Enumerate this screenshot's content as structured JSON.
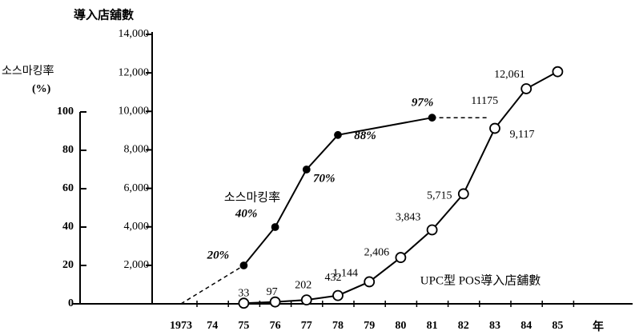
{
  "chart_data": {
    "type": "line",
    "y_title": "소스마킹率",
    "y_unit": "(%)",
    "y2_title": "導入店舖數",
    "x_title": "年",
    "categories": [
      "1973",
      "74",
      "75",
      "76",
      "77",
      "78",
      "79",
      "80",
      "81",
      "82",
      "83",
      "84",
      "85"
    ],
    "ylim": [
      0,
      100
    ],
    "yticks": [
      0,
      20,
      40,
      60,
      80,
      100
    ],
    "y2lim": [
      0,
      14000
    ],
    "y2ticks": [
      {
        "value": 2000,
        "label": "2,000"
      },
      {
        "value": 4000,
        "label": "4,000"
      },
      {
        "value": 6000,
        "label": "6,000"
      },
      {
        "value": 8000,
        "label": "8,000"
      },
      {
        "value": 10000,
        "label": "10,000"
      },
      {
        "value": 12000,
        "label": "12,000"
      },
      {
        "value": 14000,
        "label": "14,000"
      }
    ],
    "series": [
      {
        "name": "소스마킹率",
        "color": "#000000",
        "marker": "filled",
        "values": [
          null,
          null,
          20,
          40,
          70,
          88,
          null,
          null,
          97,
          null,
          null,
          null,
          null
        ],
        "value_labels": [
          null,
          null,
          "20%",
          "40%",
          "70%",
          "88%",
          null,
          null,
          "97%",
          null,
          null,
          null,
          null
        ]
      },
      {
        "name": "UPC型 POS導入店舖數",
        "color": "#000000",
        "marker": "open",
        "axis": "y2",
        "values": [
          null,
          null,
          33,
          97,
          202,
          432,
          1144,
          2406,
          3843,
          5715,
          9117,
          11175,
          12061
        ],
        "value_labels": [
          null,
          null,
          "33",
          "97",
          "202",
          "432",
          "1,144",
          "2,406",
          "3,843",
          "5,715",
          "9,117",
          "11175",
          "12,061"
        ]
      }
    ]
  }
}
